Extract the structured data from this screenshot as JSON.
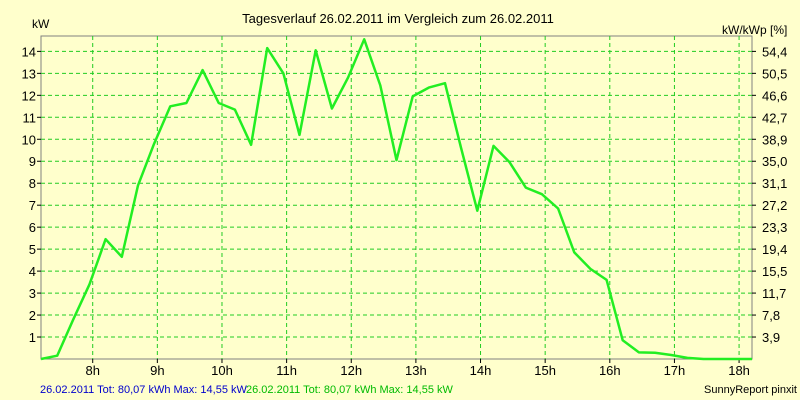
{
  "chart_data": {
    "type": "line",
    "title": "Tagesverlauf 26.02.2011 im Vergleich zum 26.02.2011",
    "ylabel_left": "kW",
    "ylabel_right": "kW/kWp [%]",
    "x_ticks": [
      "8h",
      "9h",
      "10h",
      "11h",
      "12h",
      "13h",
      "14h",
      "15h",
      "16h",
      "17h",
      "18h"
    ],
    "y_ticks_left": [
      "1",
      "2",
      "3",
      "4",
      "5",
      "6",
      "7",
      "8",
      "9",
      "10",
      "11",
      "12",
      "13",
      "14"
    ],
    "y_ticks_right": [
      "3,9",
      "7,8",
      "11,7",
      "15,5",
      "19,4",
      "23,3",
      "27,2",
      "31,1",
      "35,0",
      "38,9",
      "42,7",
      "46,6",
      "50,5",
      "54,4"
    ],
    "xlim": [
      7.2,
      18.2
    ],
    "ylim": [
      0,
      14.7
    ],
    "grid": true,
    "series": [
      {
        "color": "#22EE22",
        "x": [
          7.2,
          7.45,
          7.7,
          7.95,
          8.2,
          8.45,
          8.7,
          8.95,
          9.2,
          9.45,
          9.7,
          9.95,
          10.2,
          10.45,
          10.7,
          10.95,
          11.2,
          11.45,
          11.7,
          11.95,
          12.2,
          12.45,
          12.7,
          12.95,
          13.2,
          13.45,
          13.7,
          13.95,
          14.2,
          14.45,
          14.7,
          14.95,
          15.2,
          15.45,
          15.7,
          15.95,
          16.2,
          16.45,
          16.7,
          16.95,
          17.2,
          17.45,
          17.7,
          17.95,
          18.2
        ],
        "y": [
          0,
          0.15,
          1.8,
          3.4,
          5.45,
          4.65,
          7.9,
          9.8,
          11.5,
          11.65,
          13.15,
          11.65,
          11.35,
          9.75,
          14.15,
          13.0,
          10.2,
          14.05,
          11.4,
          12.8,
          14.55,
          12.45,
          9.05,
          11.95,
          12.35,
          12.55,
          9.6,
          6.75,
          9.7,
          8.95,
          7.8,
          7.5,
          6.85,
          4.85,
          4.1,
          3.6,
          0.85,
          0.3,
          0.28,
          0.18,
          0.05,
          0.0,
          0.0,
          0.0,
          0.0
        ]
      }
    ]
  },
  "footer": {
    "legend_blue": "26.02.2011 Tot: 80,07 kWh Max: 14,55 kW",
    "legend_green": "26.02.2011 Tot: 80,07 kWh Max: 14,55 kW",
    "credit": "SunnyReport pinxit"
  },
  "colors": {
    "background": "#FFFFCC",
    "grid": "#22CC22",
    "series": "#22EE22",
    "legend_blue": "#0000CC",
    "legend_green": "#00BB00"
  }
}
